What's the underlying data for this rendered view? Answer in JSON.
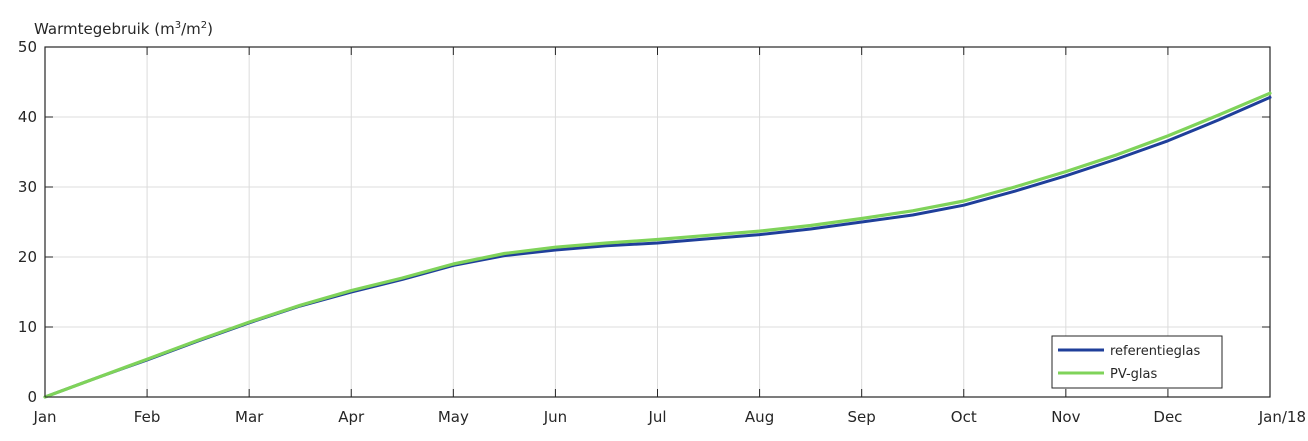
{
  "chart_data": {
    "type": "line",
    "ylabel": "Warmtegebruik",
    "ylabel_unit_base": "m",
    "ylabel_unit_exp_num": "3",
    "ylabel_unit_sep": "/m",
    "ylabel_unit_exp_den": "2",
    "categories": [
      "Jan",
      "Feb",
      "Mar",
      "Apr",
      "May",
      "Jun",
      "Jul",
      "Aug",
      "Sep",
      "Oct",
      "Nov",
      "Dec",
      "Jan/18"
    ],
    "ylim": [
      0,
      50
    ],
    "yticks": [
      0,
      10,
      20,
      30,
      40,
      50
    ],
    "grid": true,
    "legend_position": "bottom-right",
    "series": [
      {
        "name": "referentieglas",
        "color": "#1f3f9a",
        "x": [
          0,
          0.5,
          1,
          1.5,
          2,
          2.5,
          3,
          3.5,
          4,
          4.5,
          5,
          5.5,
          6,
          6.5,
          7,
          7.5,
          8,
          8.5,
          9,
          9.5,
          10,
          10.5,
          11,
          11.5,
          12
        ],
        "y": [
          0,
          2.7,
          5.3,
          8.0,
          10.6,
          13.0,
          15.0,
          16.8,
          18.8,
          20.2,
          21.0,
          21.6,
          22.0,
          22.6,
          23.2,
          24.0,
          25.0,
          26.0,
          27.4,
          29.4,
          31.6,
          34.0,
          36.6,
          39.6,
          42.8
        ]
      },
      {
        "name": "PV-glas",
        "color": "#7fd35a",
        "x": [
          0,
          0.5,
          1,
          1.5,
          2,
          2.5,
          3,
          3.5,
          4,
          4.5,
          5,
          5.5,
          6,
          6.5,
          7,
          7.5,
          8,
          8.5,
          9,
          9.5,
          10,
          10.5,
          11,
          11.5,
          12
        ],
        "y": [
          0,
          2.7,
          5.4,
          8.1,
          10.7,
          13.1,
          15.2,
          17.0,
          19.0,
          20.5,
          21.4,
          22.0,
          22.5,
          23.1,
          23.7,
          24.5,
          25.5,
          26.6,
          28.0,
          30.0,
          32.2,
          34.6,
          37.3,
          40.3,
          43.4
        ]
      }
    ]
  }
}
